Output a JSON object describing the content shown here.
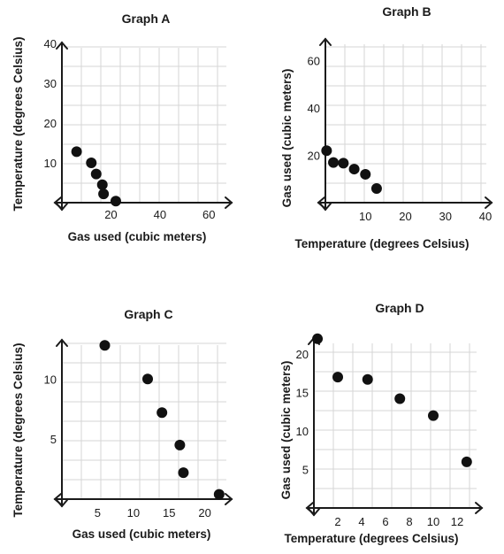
{
  "chart_data": [
    {
      "id": "graph-a",
      "type": "scatter",
      "title": "Graph A",
      "xlabel": "Gas used (cubic meters)",
      "ylabel": "Temperature (degrees Celsius)",
      "xlim": [
        0,
        70
      ],
      "ylim": [
        0,
        42
      ],
      "xticks": [
        20,
        40,
        60
      ],
      "yticks": [
        10,
        20,
        30,
        40
      ],
      "grid": true,
      "points": [
        {
          "x": 6,
          "y": 12.8
        },
        {
          "x": 12,
          "y": 10
        },
        {
          "x": 14,
          "y": 7.2
        },
        {
          "x": 16.5,
          "y": 4.5
        },
        {
          "x": 17,
          "y": 2.2
        },
        {
          "x": 22,
          "y": 0.4
        }
      ]
    },
    {
      "id": "graph-b",
      "type": "scatter",
      "title": "Graph B",
      "xlabel": "Temperature (degrees Celsius)",
      "ylabel": "Gas used (cubic meters)",
      "xlim": [
        0,
        40
      ],
      "ylim": [
        0,
        70
      ],
      "xticks": [
        10,
        20,
        30,
        40
      ],
      "yticks": [
        20,
        40,
        60
      ],
      "grid": true,
      "points": [
        {
          "x": 0.3,
          "y": 22
        },
        {
          "x": 2,
          "y": 17
        },
        {
          "x": 4.5,
          "y": 16.7
        },
        {
          "x": 7.2,
          "y": 14.2
        },
        {
          "x": 10,
          "y": 12
        },
        {
          "x": 12.8,
          "y": 6
        }
      ]
    },
    {
      "id": "graph-c",
      "type": "scatter",
      "title": "Graph C",
      "xlabel": "Gas used (cubic meters)",
      "ylabel": "Temperature (degrees Celsius)",
      "xlim": [
        0,
        24
      ],
      "ylim": [
        0,
        14
      ],
      "xticks": [
        5,
        10,
        15,
        20
      ],
      "yticks": [
        5,
        10
      ],
      "grid": true,
      "points": [
        {
          "x": 6,
          "y": 12.8
        },
        {
          "x": 12,
          "y": 10
        },
        {
          "x": 14,
          "y": 7.2
        },
        {
          "x": 16.5,
          "y": 4.5
        },
        {
          "x": 17,
          "y": 2.2
        },
        {
          "x": 22,
          "y": 0.4
        }
      ]
    },
    {
      "id": "graph-d",
      "type": "scatter",
      "title": "Graph D",
      "xlabel": "Temperature (degrees Celsius)",
      "ylabel": "Gas used (cubic meters)",
      "xlim": [
        0,
        14
      ],
      "ylim": [
        0,
        23
      ],
      "xticks": [
        2,
        4,
        6,
        8,
        10,
        12
      ],
      "yticks": [
        5,
        10,
        15,
        20
      ],
      "grid": true,
      "points": [
        {
          "x": 0.3,
          "y": 22
        },
        {
          "x": 2,
          "y": 17
        },
        {
          "x": 4.5,
          "y": 16.7
        },
        {
          "x": 7.2,
          "y": 14.2
        },
        {
          "x": 10,
          "y": 12
        },
        {
          "x": 12.8,
          "y": 6
        }
      ]
    }
  ]
}
